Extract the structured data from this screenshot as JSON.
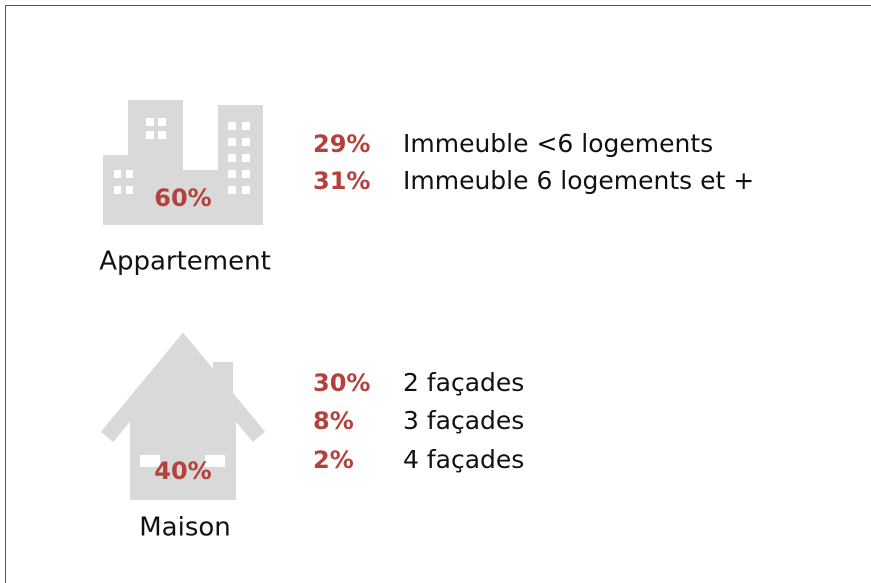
{
  "groups": [
    {
      "label": "Appartement",
      "share": "60%",
      "items": [
        {
          "share": "29%",
          "label": "Immeuble <6 logements"
        },
        {
          "share": "31%",
          "label": "Immeuble 6 logements et +"
        }
      ]
    },
    {
      "label": "Maison",
      "share": "40%",
      "items": [
        {
          "share": "30%",
          "label": "2 façades"
        },
        {
          "share": "8%",
          "label": "3 façades"
        },
        {
          "share": "2%",
          "label": "4 façades"
        }
      ]
    }
  ]
}
